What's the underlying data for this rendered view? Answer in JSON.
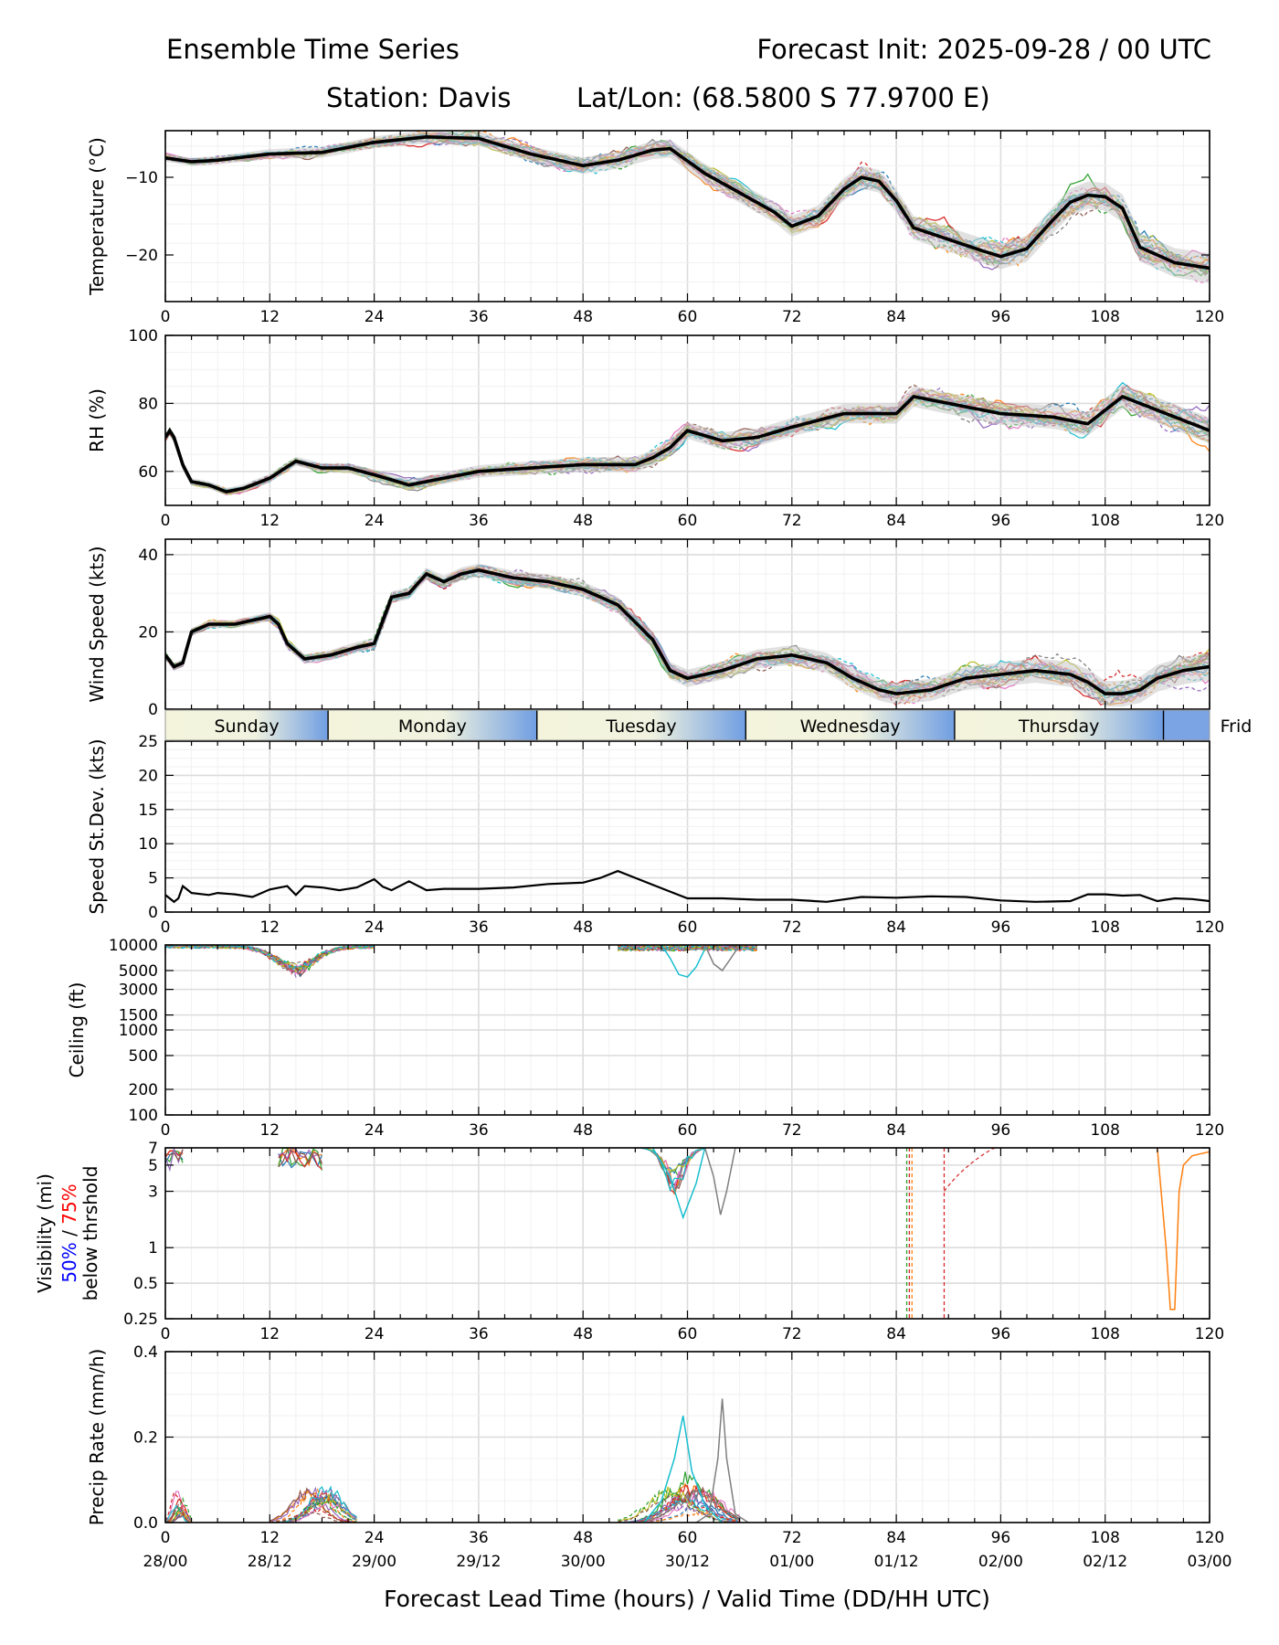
{
  "header": {
    "title_left": "Ensemble Time Series",
    "title_right": "Forecast Init: 2025-09-28 / 00 UTC",
    "station": "Station: Davis",
    "latlon": "Lat/Lon: (68.5800 S 77.9700 E)"
  },
  "xaxis": {
    "range": [
      0,
      120
    ],
    "ticks": [
      0,
      12,
      24,
      36,
      48,
      60,
      72,
      84,
      96,
      108,
      120
    ],
    "valid_time_labels": [
      "28/00",
      "28/12",
      "29/00",
      "29/12",
      "30/00",
      "30/12",
      "01/00",
      "01/12",
      "02/00",
      "02/12",
      "03/00"
    ],
    "label": "Forecast Lead Time (hours) / Valid Time (DD/HH UTC)"
  },
  "day_band": {
    "days": [
      {
        "label": "Sunday",
        "start": 0,
        "end": 18.7
      },
      {
        "label": "Monday",
        "start": 18.7,
        "end": 42.7
      },
      {
        "label": "Tuesday",
        "start": 42.7,
        "end": 66.7
      },
      {
        "label": "Wednesday",
        "start": 66.7,
        "end": 90.7
      },
      {
        "label": "Thursday",
        "start": 90.7,
        "end": 114.7
      },
      {
        "label": "Frid",
        "start": 114.7,
        "end": 120
      }
    ]
  },
  "colors": {
    "members": [
      "#1f77b4",
      "#ff7f0e",
      "#2ca02c",
      "#d62728",
      "#9467bd",
      "#8c564b",
      "#e377c2",
      "#7f7f7f",
      "#bcbd22",
      "#17becf"
    ],
    "mean": "#000000",
    "spread": "#c8c8c8",
    "visibility_50": "#0000ff",
    "visibility_75": "#ff0000"
  },
  "chart_data": [
    {
      "id": "temperature",
      "type": "line",
      "ylabel": "Temperature (°C)",
      "ylim": [
        -26,
        -4
      ],
      "yticks": [
        -10,
        -20
      ],
      "ytick_labels": [
        "−10",
        "−20"
      ],
      "grid": true,
      "ensemble_members": 20,
      "mean": {
        "x": [
          0,
          3,
          6,
          12,
          18,
          24,
          30,
          36,
          42,
          48,
          52,
          56,
          58,
          62,
          66,
          70,
          72,
          75,
          78,
          80,
          82,
          84,
          86,
          90,
          94,
          96,
          99,
          102,
          104,
          106,
          108,
          110,
          112,
          116,
          120
        ],
        "y": [
          -7.5,
          -8,
          -7.8,
          -7,
          -6.8,
          -5.5,
          -4.8,
          -5,
          -7,
          -8.5,
          -7.8,
          -6.5,
          -6.3,
          -9.5,
          -12,
          -14.5,
          -16.3,
          -15,
          -11.5,
          -10,
          -10.5,
          -13,
          -16.5,
          -18,
          -19.5,
          -20.2,
          -19.2,
          -15.5,
          -13.2,
          -12.3,
          -12.5,
          -14,
          -19,
          -21,
          -21.7
        ]
      }
    },
    {
      "id": "rh",
      "type": "line",
      "ylabel": "RH (%)",
      "ylim": [
        50,
        100
      ],
      "yticks": [
        60,
        80,
        100
      ],
      "ytick_labels": [
        "60",
        "80",
        "100"
      ],
      "grid": true,
      "ensemble_members": 20,
      "mean": {
        "x": [
          0,
          0.5,
          1,
          2,
          3,
          5,
          7,
          9,
          12,
          15,
          18,
          21,
          24,
          28,
          32,
          36,
          42,
          48,
          54,
          56,
          58,
          60,
          64,
          68,
          72,
          78,
          84,
          86,
          90,
          96,
          102,
          106,
          110,
          114,
          120
        ],
        "y": [
          70,
          72,
          70,
          62,
          57,
          56,
          54,
          55,
          58,
          63,
          61,
          61,
          59,
          56,
          58,
          60,
          61,
          62,
          62,
          64,
          67,
          72,
          69,
          70,
          73,
          77,
          77,
          82,
          80,
          77,
          76,
          74,
          82,
          78,
          72
        ]
      }
    },
    {
      "id": "wind_speed",
      "type": "line",
      "ylabel": "Wind Speed (kts)",
      "ylim": [
        0,
        44
      ],
      "yticks": [
        0,
        20,
        40
      ],
      "ytick_labels": [
        "0",
        "20",
        "40"
      ],
      "grid": true,
      "ensemble_members": 20,
      "mean": {
        "x": [
          0,
          1,
          2,
          3,
          5,
          8,
          10,
          12,
          13,
          14,
          16,
          19,
          22,
          24,
          25,
          26,
          28,
          30,
          32,
          34,
          36,
          40,
          44,
          48,
          52,
          56,
          58,
          60,
          64,
          68,
          72,
          76,
          79,
          82,
          84,
          88,
          92,
          96,
          100,
          104,
          106,
          108,
          110,
          112,
          114,
          117,
          120
        ],
        "y": [
          14,
          11,
          12,
          20,
          22,
          22,
          23,
          24,
          22,
          17,
          13,
          14,
          16,
          17,
          23,
          29,
          30,
          35,
          33,
          35,
          36,
          34,
          33,
          31,
          27,
          18,
          10,
          8,
          10,
          13,
          14,
          12,
          8,
          5,
          4,
          5,
          8,
          9,
          10,
          9,
          7,
          4,
          4,
          5,
          8,
          10,
          11
        ]
      }
    },
    {
      "id": "speed_stdev",
      "type": "line",
      "ylabel": "Speed St.Dev. (kts)",
      "ylim": [
        0,
        25
      ],
      "yticks": [
        0,
        5,
        10,
        15,
        20,
        25
      ],
      "ytick_labels": [
        "0",
        "5",
        "10",
        "15",
        "20",
        "25"
      ],
      "grid": true,
      "series": [
        {
          "name": "Speed St.Dev.",
          "x": [
            0,
            1,
            1.5,
            2,
            3,
            5,
            6,
            8,
            10,
            12,
            14,
            15,
            16,
            18,
            20,
            22,
            24,
            25,
            26,
            28,
            30,
            32,
            36,
            40,
            44,
            48,
            50,
            52,
            54,
            56,
            58,
            60,
            64,
            68,
            72,
            76,
            80,
            84,
            88,
            92,
            96,
            100,
            104,
            106,
            108,
            110,
            112,
            114,
            116,
            118,
            120
          ],
          "y": [
            2.5,
            1.5,
            2,
            3.8,
            2.8,
            2.5,
            2.8,
            2.6,
            2.2,
            3.3,
            3.8,
            2.5,
            3.8,
            3.6,
            3.2,
            3.6,
            4.8,
            3.7,
            3.2,
            4.5,
            3.2,
            3.4,
            3.4,
            3.6,
            4.1,
            4.3,
            5,
            6,
            5,
            4,
            3,
            2,
            2,
            1.8,
            1.8,
            1.5,
            2.2,
            2.1,
            2.3,
            2.2,
            1.7,
            1.5,
            1.6,
            2.6,
            2.6,
            2.4,
            2.5,
            1.6,
            2,
            1.9,
            1.6
          ]
        }
      ]
    },
    {
      "id": "ceiling",
      "type": "line",
      "ylabel": "Ceiling (ft)",
      "yscale": "log",
      "ylim": [
        100,
        10000
      ],
      "yticks": [
        100,
        200,
        500,
        1000,
        1500,
        3000,
        5000,
        10000
      ],
      "ytick_labels": [
        "100",
        "200",
        "500",
        "1000",
        "1500",
        "3000",
        "5000",
        "10000"
      ],
      "grid": true,
      "ensemble_members": 20,
      "notable_members": [
        {
          "name": "cyan member",
          "x": [
            57,
            58,
            59,
            60,
            61,
            62
          ],
          "y": [
            10000,
            7000,
            4500,
            4200,
            5500,
            9000
          ]
        },
        {
          "name": "gray member",
          "x": [
            62,
            63,
            64,
            65,
            66
          ],
          "y": [
            10000,
            6000,
            5000,
            7000,
            10000
          ]
        }
      ]
    },
    {
      "id": "visibility",
      "type": "line",
      "ylabel": "Visibility (mi)",
      "yscale": "log",
      "ylabel_extra": [
        "50%",
        " / ",
        "75%",
        "below thrshold"
      ],
      "ylim": [
        0.25,
        7
      ],
      "yticks": [
        0.25,
        0.5,
        1,
        3,
        5,
        7
      ],
      "ytick_labels": [
        "0.25",
        "0.5",
        "1",
        "3",
        "5",
        "7"
      ],
      "grid": true,
      "ensemble_members": 20,
      "notable_members": [
        {
          "name": "cyan member",
          "x": [
            56,
            58,
            59.5,
            61,
            62
          ],
          "y": [
            7,
            4,
            1.8,
            3.5,
            7
          ]
        },
        {
          "name": "gray member",
          "x": [
            62,
            63,
            63.8,
            64.5,
            65.5
          ],
          "y": [
            7,
            4,
            1.9,
            3,
            7
          ]
        },
        {
          "name": "orange member",
          "x": [
            114,
            115,
            115.5,
            116,
            116.5,
            117,
            118,
            120
          ],
          "y": [
            7,
            1,
            0.3,
            0.3,
            3,
            5,
            6,
            6.5
          ]
        }
      ]
    },
    {
      "id": "precip_rate",
      "type": "line",
      "ylabel": "Precip Rate (mm/h)",
      "ylim": [
        0,
        0.4
      ],
      "yticks": [
        0,
        0.2,
        0.4
      ],
      "ytick_labels": [
        "0.0",
        "0.2",
        "0.4"
      ],
      "grid": true,
      "ensemble_members": 20,
      "notable_members": [
        {
          "name": "cyan member",
          "x": [
            55,
            57,
            58.5,
            59.5,
            60.5,
            62,
            64
          ],
          "y": [
            0,
            0.05,
            0.15,
            0.25,
            0.12,
            0.04,
            0
          ]
        },
        {
          "name": "gray member",
          "x": [
            61,
            62.5,
            63.5,
            64,
            64.5,
            65.5,
            67
          ],
          "y": [
            0,
            0.02,
            0.15,
            0.29,
            0.15,
            0.02,
            0
          ]
        }
      ]
    }
  ]
}
